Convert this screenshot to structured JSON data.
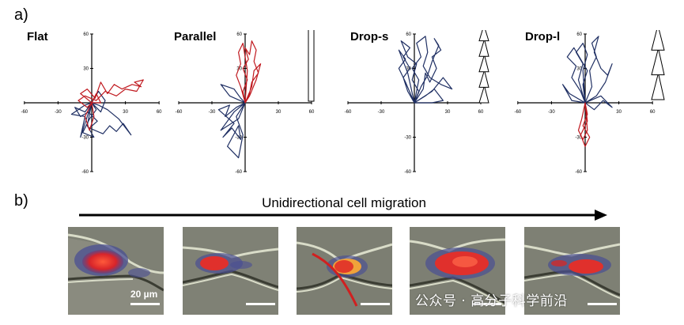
{
  "panel_labels": {
    "a": "a)",
    "b": "b)"
  },
  "colors": {
    "blue": "#1f2f63",
    "red": "#c0181e"
  },
  "chart_data": [
    {
      "type": "line",
      "title": "Flat",
      "xlim": [
        -60,
        60
      ],
      "ylim": [
        -60,
        60
      ],
      "xticks": [
        "-60",
        "-30",
        "30",
        "60"
      ],
      "yticks": [
        "60",
        "30",
        "-30",
        "-60"
      ],
      "schematic": "none",
      "series": [
        {
          "color": "blue",
          "points": [
            [
              0,
              0
            ],
            [
              -6,
              -8
            ],
            [
              -15,
              -4
            ],
            [
              -10,
              -12
            ],
            [
              -3,
              -8
            ],
            [
              5,
              -16
            ],
            [
              -2,
              -22
            ],
            [
              10,
              -27
            ],
            [
              16,
              -20
            ],
            [
              22,
              -25
            ],
            [
              28,
              -18
            ],
            [
              35,
              -28
            ],
            [
              24,
              -14
            ],
            [
              14,
              -6
            ],
            [
              6,
              -2
            ],
            [
              0,
              0
            ],
            [
              -4,
              -20
            ],
            [
              2,
              -30
            ],
            [
              -8,
              -26
            ],
            [
              -2,
              -14
            ],
            [
              4,
              -6
            ],
            [
              0,
              0
            ],
            [
              -10,
              -30
            ],
            [
              -6,
              -12
            ],
            [
              -18,
              -10
            ],
            [
              -6,
              -2
            ],
            [
              0,
              0
            ],
            [
              6,
              10
            ],
            [
              12,
              2
            ],
            [
              8,
              -8
            ],
            [
              0,
              0
            ]
          ]
        },
        {
          "color": "red",
          "points": [
            [
              0,
              0
            ],
            [
              -10,
              8
            ],
            [
              -4,
              12
            ],
            [
              3,
              4
            ],
            [
              8,
              18
            ],
            [
              14,
              8
            ],
            [
              20,
              16
            ],
            [
              27,
              12
            ],
            [
              36,
              16
            ],
            [
              44,
              14
            ],
            [
              38,
              18
            ],
            [
              46,
              20
            ],
            [
              40,
              10
            ],
            [
              30,
              12
            ],
            [
              22,
              6
            ],
            [
              12,
              10
            ],
            [
              4,
              2
            ],
            [
              -6,
              6
            ],
            [
              -12,
              2
            ],
            [
              -4,
              -4
            ],
            [
              0,
              0
            ],
            [
              4,
              8
            ],
            [
              8,
              0
            ],
            [
              0,
              0
            ],
            [
              -6,
              -12
            ],
            [
              -2,
              -24
            ],
            [
              2,
              -12
            ],
            [
              0,
              0
            ]
          ]
        }
      ]
    },
    {
      "type": "line",
      "title": "Parallel",
      "xlim": [
        -60,
        60
      ],
      "ylim": [
        -60,
        60
      ],
      "xticks": [
        "-60",
        "-30",
        "30",
        "60"
      ],
      "yticks": [
        "60",
        "30",
        "-30",
        "-60"
      ],
      "schematic": "parallel",
      "series": [
        {
          "color": "blue",
          "points": [
            [
              0,
              0
            ],
            [
              -8,
              -4
            ],
            [
              -18,
              -12
            ],
            [
              -14,
              -2
            ],
            [
              -24,
              -6
            ],
            [
              -10,
              -18
            ],
            [
              -20,
              -30
            ],
            [
              -12,
              -22
            ],
            [
              -4,
              -32
            ],
            [
              -6,
              -20
            ],
            [
              -16,
              -38
            ],
            [
              -6,
              -48
            ],
            [
              -2,
              -28
            ],
            [
              -8,
              -12
            ],
            [
              0,
              0
            ],
            [
              -14,
              6
            ],
            [
              -22,
              16
            ],
            [
              -10,
              12
            ],
            [
              -4,
              4
            ],
            [
              0,
              0
            ],
            [
              -10,
              -8
            ],
            [
              -22,
              -24
            ],
            [
              -6,
              -14
            ],
            [
              0,
              0
            ]
          ]
        },
        {
          "color": "red",
          "points": [
            [
              0,
              0
            ],
            [
              -2,
              10
            ],
            [
              2,
              20
            ],
            [
              -2,
              30
            ],
            [
              3,
              38
            ],
            [
              0,
              48
            ],
            [
              4,
              42
            ],
            [
              6,
              54
            ],
            [
              10,
              46
            ],
            [
              8,
              36
            ],
            [
              12,
              26
            ],
            [
              6,
              18
            ],
            [
              4,
              8
            ],
            [
              0,
              0
            ],
            [
              -4,
              14
            ],
            [
              -8,
              24
            ],
            [
              -4,
              34
            ],
            [
              -6,
              44
            ],
            [
              -2,
              52
            ],
            [
              0,
              40
            ],
            [
              2,
              28
            ],
            [
              0,
              0
            ],
            [
              6,
              14
            ],
            [
              8,
              28
            ],
            [
              14,
              34
            ],
            [
              10,
              20
            ],
            [
              4,
              6
            ],
            [
              0,
              0
            ]
          ]
        }
      ]
    },
    {
      "type": "line",
      "title": "Drop-s",
      "xlim": [
        -60,
        60
      ],
      "ylim": [
        -60,
        60
      ],
      "xticks": [
        "-60",
        "-30",
        "30",
        "60"
      ],
      "yticks": [
        "60",
        "30",
        "-30",
        "-60"
      ],
      "schematic": "drop-s",
      "series": [
        {
          "color": "blue",
          "points": [
            [
              0,
              0
            ],
            [
              -6,
              10
            ],
            [
              -10,
              22
            ],
            [
              -4,
              30
            ],
            [
              -10,
              40
            ],
            [
              -4,
              48
            ],
            [
              -12,
              54
            ],
            [
              -6,
              40
            ],
            [
              2,
              34
            ],
            [
              -2,
              20
            ],
            [
              4,
              10
            ],
            [
              0,
              0
            ],
            [
              8,
              12
            ],
            [
              10,
              26
            ],
            [
              14,
              18
            ],
            [
              20,
              30
            ],
            [
              16,
              40
            ],
            [
              24,
              46
            ],
            [
              18,
              56
            ],
            [
              22,
              50
            ],
            [
              16,
              36
            ],
            [
              12,
              24
            ],
            [
              6,
              14
            ],
            [
              0,
              0
            ],
            [
              4,
              20
            ],
            [
              -2,
              30
            ],
            [
              6,
              40
            ],
            [
              2,
              52
            ],
            [
              10,
              58
            ],
            [
              12,
              44
            ],
            [
              8,
              32
            ],
            [
              14,
              22
            ],
            [
              24,
              16
            ],
            [
              34,
              12
            ],
            [
              26,
              22
            ],
            [
              16,
              10
            ],
            [
              0,
              0
            ],
            [
              -8,
              18
            ],
            [
              -14,
              30
            ],
            [
              -8,
              38
            ],
            [
              -14,
              46
            ],
            [
              -6,
              26
            ],
            [
              0,
              0
            ],
            [
              10,
              6
            ],
            [
              18,
              12
            ],
            [
              26,
              2
            ],
            [
              16,
              0
            ],
            [
              0,
              0
            ]
          ]
        }
      ]
    },
    {
      "type": "line",
      "title": "Drop-l",
      "xlim": [
        -60,
        60
      ],
      "ylim": [
        -60,
        60
      ],
      "xticks": [
        "-60",
        "-30",
        "30",
        "60"
      ],
      "yticks": [
        "60",
        "30",
        "-30",
        "-60"
      ],
      "schematic": "drop-l",
      "series": [
        {
          "color": "blue",
          "points": [
            [
              0,
              0
            ],
            [
              -4,
              10
            ],
            [
              -12,
              22
            ],
            [
              -8,
              32
            ],
            [
              -16,
              40
            ],
            [
              -10,
              48
            ],
            [
              -4,
              38
            ],
            [
              2,
              28
            ],
            [
              -2,
              16
            ],
            [
              0,
              0
            ],
            [
              6,
              14
            ],
            [
              4,
              28
            ],
            [
              10,
              40
            ],
            [
              6,
              52
            ],
            [
              12,
              58
            ],
            [
              8,
              44
            ],
            [
              14,
              30
            ],
            [
              20,
              24
            ],
            [
              24,
              34
            ],
            [
              18,
              18
            ],
            [
              10,
              6
            ],
            [
              0,
              0
            ],
            [
              -6,
              20
            ],
            [
              -2,
              34
            ],
            [
              -8,
              44
            ],
            [
              -2,
              52
            ],
            [
              2,
              42
            ],
            [
              -2,
              28
            ],
            [
              0,
              0
            ],
            [
              8,
              -6
            ],
            [
              16,
              2
            ],
            [
              24,
              -4
            ],
            [
              14,
              6
            ],
            [
              0,
              0
            ],
            [
              -14,
              8
            ],
            [
              -20,
              16
            ],
            [
              -12,
              2
            ],
            [
              0,
              0
            ]
          ]
        },
        {
          "color": "red",
          "points": [
            [
              0,
              0
            ],
            [
              2,
              -10
            ],
            [
              -2,
              -20
            ],
            [
              4,
              -30
            ],
            [
              0,
              -38
            ],
            [
              -4,
              -28
            ],
            [
              2,
              -16
            ],
            [
              0,
              0
            ],
            [
              -3,
              -14
            ],
            [
              -6,
              -24
            ],
            [
              -2,
              -32
            ],
            [
              2,
              -24
            ],
            [
              0,
              0
            ]
          ]
        }
      ]
    }
  ],
  "banner": {
    "text": "Unidirectional cell migration"
  },
  "scale_bar": {
    "label": "20 µm"
  },
  "watermark": {
    "text": "公众号 · 高分子科学前沿"
  }
}
